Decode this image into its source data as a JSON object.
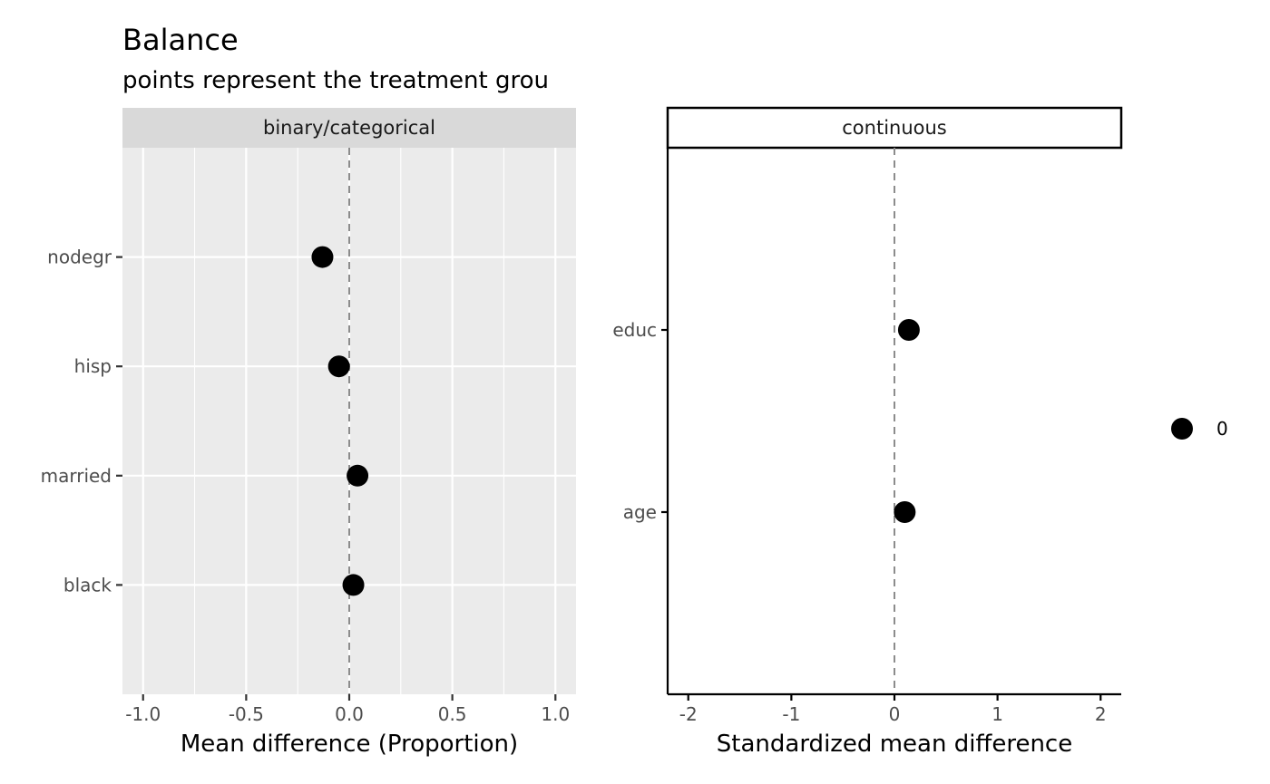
{
  "title": "Balance",
  "subtitle": "points represent the treatment grou",
  "chart_data": [
    {
      "type": "scatter",
      "facet": "binary/categorical",
      "xlabel": "Mean difference (Proportion)",
      "ylabel": "",
      "xlim": [
        -1.1,
        1.1
      ],
      "x_ticks": [
        -1.0,
        -0.5,
        0.0,
        0.5,
        1.0
      ],
      "x_tick_labels": [
        "-1.0",
        "-0.5",
        "0.0",
        "0.5",
        "1.0"
      ],
      "categories": [
        "nodegr",
        "hisp",
        "married",
        "black"
      ],
      "series": [
        {
          "name": "0",
          "values": [
            -0.13,
            -0.05,
            0.04,
            0.02
          ]
        }
      ],
      "reference_line": 0,
      "grid": true,
      "theme": "grey"
    },
    {
      "type": "scatter",
      "facet": "continuous",
      "xlabel": "Standardized mean difference",
      "ylabel": "",
      "xlim": [
        -2.2,
        2.2
      ],
      "x_ticks": [
        -2,
        -1,
        0,
        1,
        2
      ],
      "x_tick_labels": [
        "-2",
        "-1",
        "0",
        "1",
        "2"
      ],
      "categories": [
        "educ",
        "age"
      ],
      "series": [
        {
          "name": "0",
          "values": [
            0.14,
            0.1
          ]
        }
      ],
      "reference_line": 0,
      "grid": false,
      "theme": "classic"
    }
  ],
  "legend": {
    "placement": "right",
    "items": [
      {
        "label": "0",
        "color": "#000000"
      }
    ]
  },
  "colors": {
    "point": "#000000",
    "panel_grey": "#ebebeb",
    "strip_grey": "#d9d9d9",
    "grid": "#ffffff",
    "refline": "#8c8c8c"
  }
}
